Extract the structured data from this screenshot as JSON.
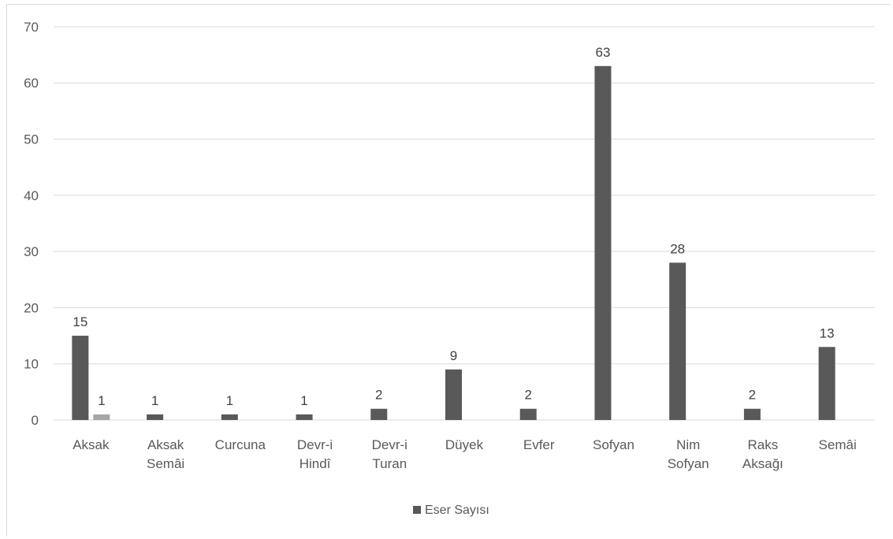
{
  "chart_data": {
    "type": "bar",
    "categories": [
      [
        "Aksak"
      ],
      [
        "Aksak",
        "Semâi"
      ],
      [
        "Curcuna"
      ],
      [
        "Devr-i",
        "Hindî"
      ],
      [
        "Devr-i",
        "Turan"
      ],
      [
        "Düyek"
      ],
      [
        "Evfer"
      ],
      [
        "Sofyan"
      ],
      [
        "Nim",
        "Sofyan"
      ],
      [
        "Raks",
        "Aksağı"
      ],
      [
        "Semâi"
      ]
    ],
    "series": [
      {
        "name": "Eser Sayısı",
        "color": "#595959",
        "values": [
          15,
          1,
          1,
          1,
          2,
          9,
          2,
          63,
          28,
          2,
          13
        ],
        "labels": [
          "15",
          "1",
          "1",
          "1",
          "2",
          "9",
          "2",
          "63",
          "28",
          "2",
          "13"
        ]
      },
      {
        "color": "#a6a6a6",
        "values": [
          1,
          null,
          null,
          null,
          null,
          null,
          null,
          null,
          null,
          null,
          null
        ],
        "labels": [
          "1",
          null,
          null,
          null,
          null,
          null,
          null,
          null,
          null,
          null,
          null
        ]
      }
    ],
    "y_ticks": [
      "0",
      "10",
      "20",
      "30",
      "40",
      "50",
      "60",
      "70"
    ],
    "ylim": [
      0,
      70
    ],
    "grid": true,
    "legend_position": "bottom",
    "gridline_color": "#d9d9d9"
  }
}
